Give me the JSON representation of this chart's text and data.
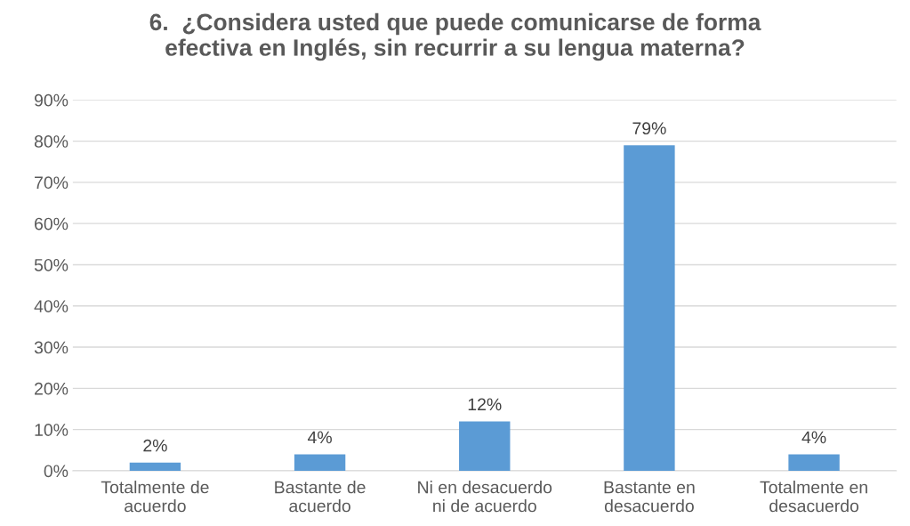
{
  "chart_data": {
    "type": "bar",
    "title": "6.  ¿Considera usted que puede comunicarse de forma\nefectiva en Inglés, sin recurrir a su lengua materna?",
    "categories": [
      "Totalmente de\nacuerdo",
      "Bastante de\nacuerdo",
      "Ni en desacuerdo\nni de acuerdo",
      "Bastante en\ndesacuerdo",
      "Totalmente en\ndesacuerdo"
    ],
    "values": [
      2,
      4,
      12,
      79,
      4
    ],
    "color": "#5b9bd5",
    "ylim": [
      0,
      90
    ],
    "yticks": [
      {
        "value": 0,
        "label": "0%"
      },
      {
        "value": 10,
        "label": "10%"
      },
      {
        "value": 20,
        "label": "20%"
      },
      {
        "value": 30,
        "label": "30%"
      },
      {
        "value": 40,
        "label": "40%"
      },
      {
        "value": 50,
        "label": "50%"
      },
      {
        "value": 60,
        "label": "60%"
      },
      {
        "value": 70,
        "label": "70%"
      },
      {
        "value": 80,
        "label": "80%"
      },
      {
        "value": 90,
        "label": "90%"
      }
    ],
    "grid": "y",
    "data_labels": true,
    "value_labels": [
      "2%",
      "4%",
      "12%",
      "79%",
      "4%"
    ]
  }
}
